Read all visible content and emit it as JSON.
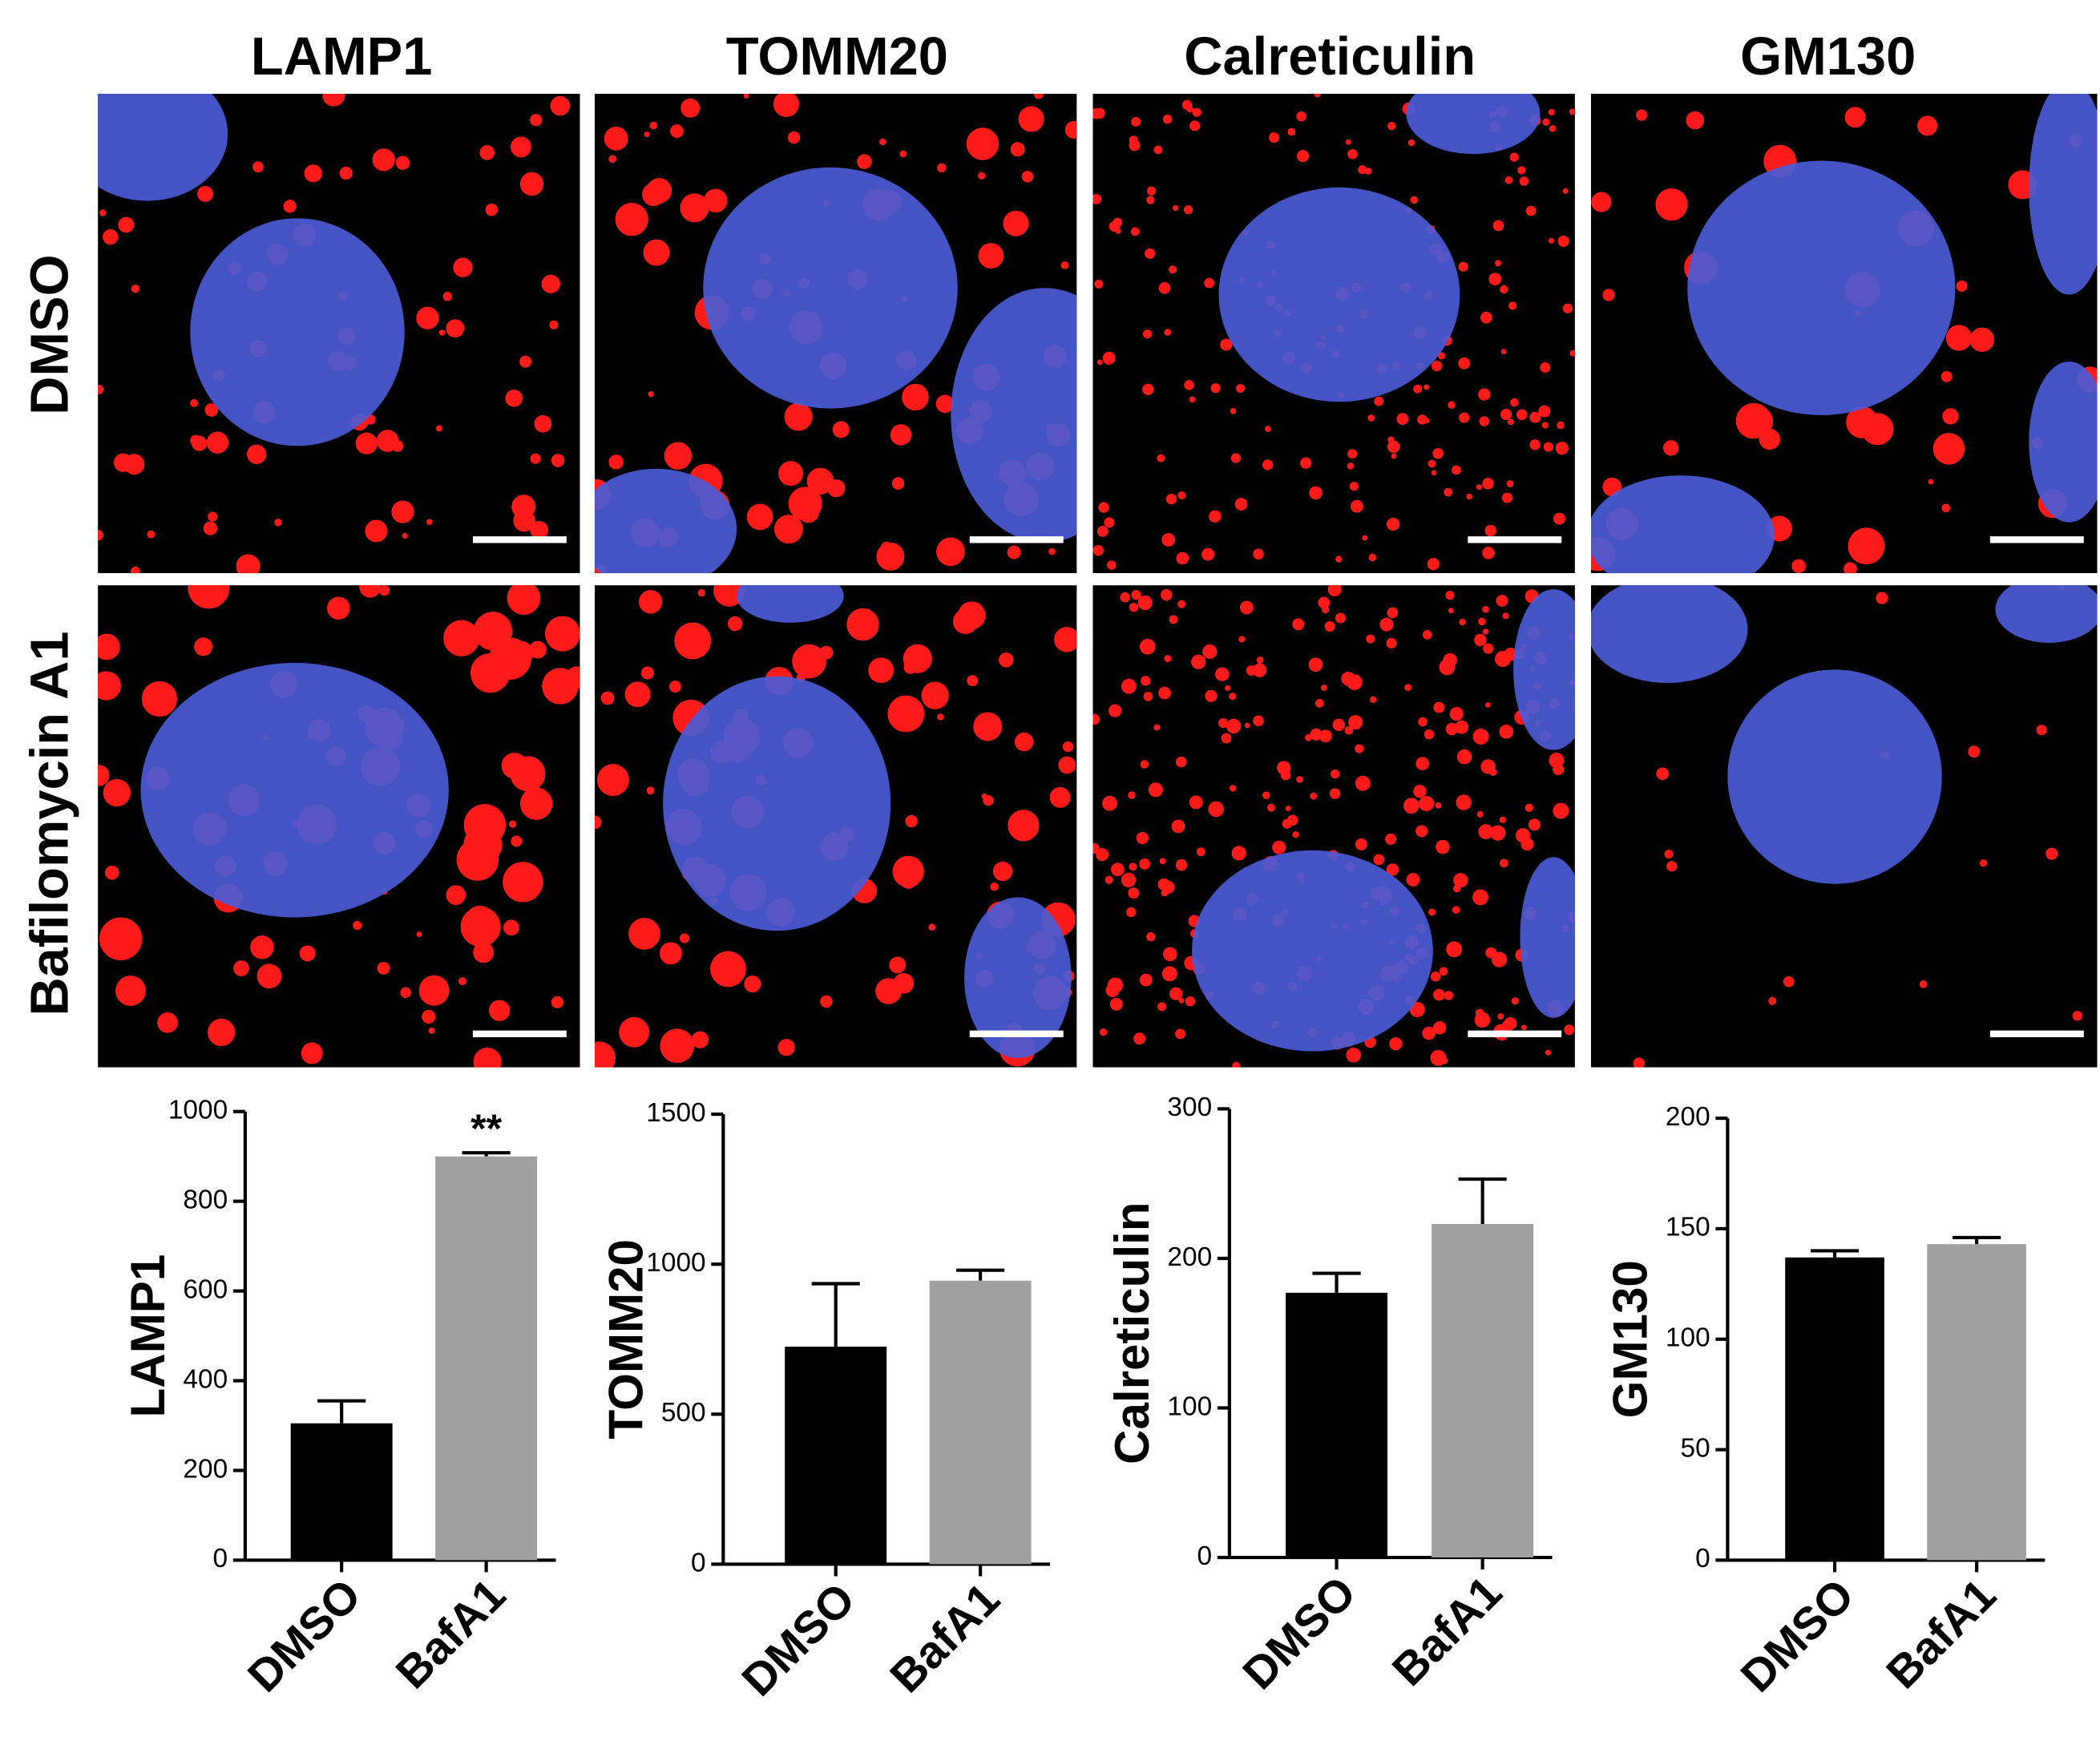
{
  "figure": {
    "columns": [
      "LAMP1",
      "TOMM20",
      "Calreticulin",
      "GM130"
    ],
    "rows": [
      "DMSO",
      "Bafilomycin A1"
    ]
  },
  "chart_data": [
    {
      "type": "bar",
      "ylabel": "LAMP1",
      "categories": [
        "DMSO",
        "BafA1"
      ],
      "values": [
        305,
        900
      ],
      "errors": [
        50,
        8
      ],
      "colors": [
        "#000000",
        "#a0a0a0"
      ],
      "ylim": [
        0,
        1000
      ],
      "yticks": [
        0,
        200,
        400,
        600,
        800,
        1000
      ],
      "annotation": "**"
    },
    {
      "type": "bar",
      "ylabel": "TOMM20",
      "categories": [
        "DMSO",
        "BafA1"
      ],
      "values": [
        725,
        945
      ],
      "errors": [
        210,
        35
      ],
      "colors": [
        "#000000",
        "#a0a0a0"
      ],
      "ylim": [
        0,
        1500
      ],
      "yticks": [
        0,
        500,
        1000,
        1500
      ]
    },
    {
      "type": "bar",
      "ylabel": "Calreticulin",
      "categories": [
        "DMSO",
        "BafA1"
      ],
      "values": [
        177,
        223
      ],
      "errors": [
        13,
        30
      ],
      "colors": [
        "#000000",
        "#a0a0a0"
      ],
      "ylim": [
        0,
        300
      ],
      "yticks": [
        0,
        100,
        200,
        300
      ]
    },
    {
      "type": "bar",
      "ylabel": "GM130",
      "categories": [
        "DMSO",
        "BafA1"
      ],
      "values": [
        137,
        143
      ],
      "errors": [
        3,
        3
      ],
      "colors": [
        "#000000",
        "#a0a0a0"
      ],
      "ylim": [
        0,
        200
      ],
      "yticks": [
        0,
        50,
        100,
        150,
        200
      ]
    }
  ]
}
